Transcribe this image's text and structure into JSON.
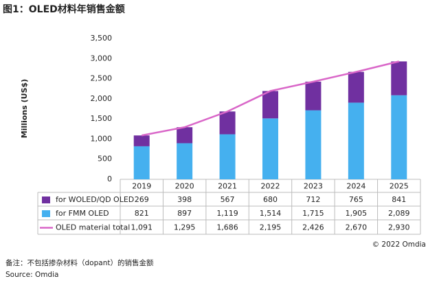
{
  "chart_data": {
    "type": "bar",
    "stacked": true,
    "title": "图1：OLED材料年销售金额",
    "ylabel": "Millions (US$)",
    "categories": [
      "2019",
      "2020",
      "2021",
      "2022",
      "2023",
      "2024",
      "2025"
    ],
    "series": [
      {
        "name": "for WOLED/QD OLED",
        "color": "#7030a0",
        "values": [
          269,
          398,
          567,
          680,
          712,
          765,
          841
        ]
      },
      {
        "name": "for FMM OLED",
        "color": "#45b0ef",
        "values": [
          821,
          897,
          1119,
          1514,
          1715,
          1905,
          2089
        ],
        "value_labels": [
          "821",
          "897",
          "1,119",
          "1,514",
          "1,715",
          "1,905",
          "2,089"
        ]
      },
      {
        "name": "OLED material total",
        "type": "line",
        "color": "#d966c8",
        "values": [
          1091,
          1295,
          1686,
          2195,
          2426,
          2670,
          2930
        ],
        "value_labels": [
          "1,091",
          "1,295",
          "1,686",
          "2,195",
          "2,426",
          "2,670",
          "2,930"
        ]
      }
    ],
    "ylim": [
      0,
      3500
    ],
    "yticks": [
      0,
      500,
      {
        "value": 1000,
        "label": "1,000"
      },
      {
        "value": 1500,
        "label": "1,500"
      },
      {
        "value": 2000,
        "label": "2,000"
      },
      {
        "value": 2500,
        "label": "2,500"
      },
      {
        "value": 3000,
        "label": "3,000"
      },
      {
        "value": 3500,
        "label": "3,500"
      }
    ],
    "grid": false,
    "copyright": "© 2022 Omdia",
    "note": "备注：不包括掺杂材料（dopant）的销售金额",
    "source": "Source: Omdia"
  }
}
